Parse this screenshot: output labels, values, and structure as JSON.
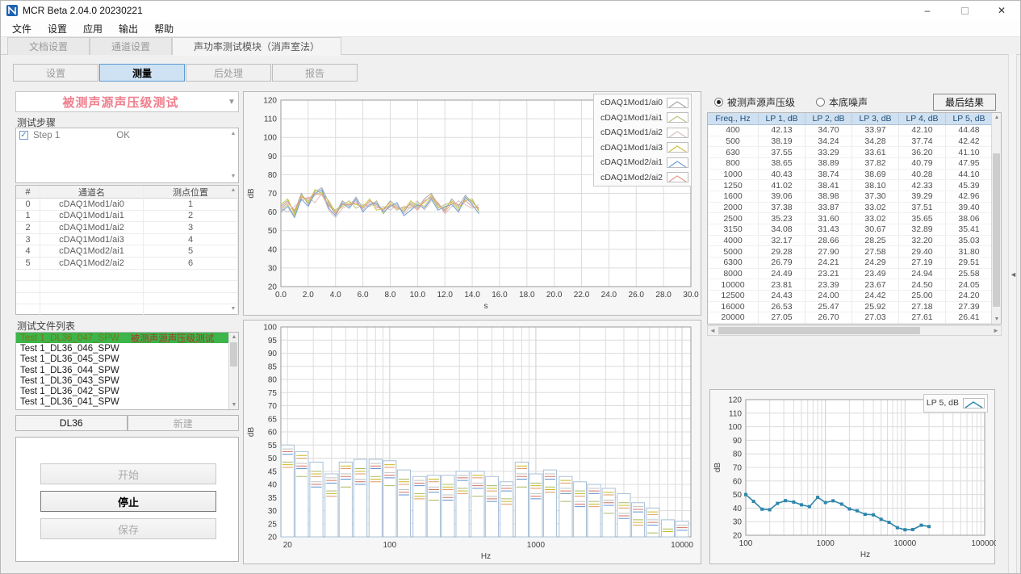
{
  "window": {
    "title": "MCR Beta 2.04.0 20230221",
    "minimize": "–",
    "close": "✕"
  },
  "menu": [
    "文件",
    "设置",
    "应用",
    "输出",
    "帮助"
  ],
  "tabs": [
    {
      "label": "文档设置",
      "active": false
    },
    {
      "label": "通道设置",
      "active": false
    },
    {
      "label": "声功率测试模块（消声室法）",
      "active": true
    }
  ],
  "subtabs": [
    {
      "label": "设置",
      "active": false
    },
    {
      "label": "测量",
      "active": true
    },
    {
      "label": "后处理",
      "active": false
    },
    {
      "label": "报告",
      "active": false
    }
  ],
  "left": {
    "test_selector": "被测声源声压级测试",
    "steps_label": "测试步骤",
    "steps": [
      {
        "checked": true,
        "name": "Step 1",
        "status": "OK"
      }
    ],
    "channel_table": {
      "headers": [
        "#",
        "通道名",
        "测点位置"
      ],
      "rows": [
        [
          "0",
          "cDAQ1Mod1/ai0",
          "1"
        ],
        [
          "1",
          "cDAQ1Mod1/ai1",
          "2"
        ],
        [
          "2",
          "cDAQ1Mod1/ai2",
          "3"
        ],
        [
          "3",
          "cDAQ1Mod1/ai3",
          "4"
        ],
        [
          "4",
          "cDAQ1Mod2/ai1",
          "5"
        ],
        [
          "5",
          "cDAQ1Mod2/ai2",
          "6"
        ]
      ],
      "empty_rows": 4
    },
    "file_list_label": "测试文件列表",
    "files": [
      {
        "name": "Test 1_DL36_047_SPW",
        "tag": "被测声源声压级测试",
        "selected": true
      },
      {
        "name": "Test 1_DL36_046_SPW",
        "tag": "",
        "selected": false
      },
      {
        "name": "Test 1_DL36_045_SPW",
        "tag": "",
        "selected": false
      },
      {
        "name": "Test 1_DL36_044_SPW",
        "tag": "",
        "selected": false
      },
      {
        "name": "Test 1_DL36_043_SPW",
        "tag": "",
        "selected": false
      },
      {
        "name": "Test 1_DL36_042_SPW",
        "tag": "",
        "selected": false
      },
      {
        "name": "Test 1_DL36_041_SPW",
        "tag": "",
        "selected": false
      }
    ],
    "buttons": {
      "dl36": "DL36",
      "new": "新建",
      "start": "开始",
      "stop": "停止",
      "save": "保存"
    }
  },
  "right": {
    "radio_source": "被测声源声压级",
    "radio_noise": "本底噪声",
    "final_button": "最后结果",
    "table": {
      "headers": [
        "Freq., Hz",
        "LP  1, dB",
        "LP  2, dB",
        "LP  3, dB",
        "LP  4, dB",
        "LP  5, dB"
      ],
      "rows": [
        [
          "400",
          "42.13",
          "34.70",
          "33.97",
          "42.10",
          "44.48"
        ],
        [
          "500",
          "38.19",
          "34.24",
          "34.28",
          "37.74",
          "42.42"
        ],
        [
          "630",
          "37.55",
          "33.29",
          "33.61",
          "36.20",
          "41.10"
        ],
        [
          "800",
          "38.65",
          "38.89",
          "37.82",
          "40.79",
          "47.95"
        ],
        [
          "1000",
          "40.43",
          "38.74",
          "38.69",
          "40.28",
          "44.10"
        ],
        [
          "1250",
          "41.02",
          "38.41",
          "38.10",
          "42.33",
          "45.39"
        ],
        [
          "1600",
          "39.06",
          "38.98",
          "37.30",
          "39.29",
          "42.96"
        ],
        [
          "2000",
          "37.38",
          "33.87",
          "33.02",
          "37.51",
          "39.40"
        ],
        [
          "2500",
          "35.23",
          "31.60",
          "33.02",
          "35.65",
          "38.06"
        ],
        [
          "3150",
          "34.08",
          "31.43",
          "30.67",
          "32.89",
          "35.41"
        ],
        [
          "4000",
          "32.17",
          "28.66",
          "28.25",
          "32.20",
          "35.03"
        ],
        [
          "5000",
          "29.28",
          "27.90",
          "27.58",
          "29.40",
          "31.80"
        ],
        [
          "6300",
          "26.79",
          "24.21",
          "24.29",
          "27.19",
          "29.51"
        ],
        [
          "8000",
          "24.49",
          "23.21",
          "23.49",
          "24.94",
          "25.58"
        ],
        [
          "10000",
          "23.81",
          "23.39",
          "23.67",
          "24.50",
          "24.05"
        ],
        [
          "12500",
          "24.43",
          "24.00",
          "24.42",
          "25.00",
          "24.20"
        ],
        [
          "16000",
          "26.53",
          "25.47",
          "25.92",
          "27.18",
          "27.39"
        ],
        [
          "20000",
          "27.05",
          "26.70",
          "27.03",
          "27.61",
          "26.41"
        ]
      ]
    }
  },
  "chart_data": [
    {
      "type": "line",
      "xlabel": "s",
      "ylabel": "dB",
      "ylim": [
        20,
        120
      ],
      "ytick": 10,
      "xlim": [
        0,
        30
      ],
      "xtick": 2,
      "x": [
        0,
        0.5,
        1,
        1.5,
        2,
        2.5,
        3,
        3.5,
        4,
        4.5,
        5,
        5.5,
        6,
        6.5,
        7,
        7.5,
        8,
        8.5,
        9,
        9.5,
        10,
        10.5,
        11,
        11.5,
        12,
        12.5,
        13,
        13.5,
        14,
        14.5
      ],
      "series": [
        {
          "name": "cDAQ1Mod1/ai0",
          "color": "#a6a6a6",
          "values": [
            63,
            66,
            60,
            70,
            64,
            71,
            73,
            65,
            59,
            66,
            63,
            68,
            62,
            66,
            64,
            61,
            66,
            63,
            60,
            65,
            62,
            67,
            70,
            64,
            61,
            67,
            63,
            69,
            65,
            62
          ]
        },
        {
          "name": "cDAQ1Mod1/ai1",
          "color": "#b9c27e",
          "values": [
            61,
            64,
            58,
            68,
            66,
            69,
            71,
            63,
            61,
            64,
            66,
            62,
            64,
            63,
            66,
            59,
            64,
            61,
            63,
            62,
            65,
            63,
            68,
            62,
            64,
            65,
            61,
            66,
            67,
            60
          ]
        },
        {
          "name": "cDAQ1Mod1/ai2",
          "color": "#d9c0c0",
          "values": [
            62,
            60,
            63,
            66,
            68,
            65,
            70,
            61,
            57,
            62,
            64,
            66,
            61,
            65,
            62,
            63,
            61,
            64,
            59,
            63,
            66,
            61,
            66,
            65,
            59,
            63,
            66,
            64,
            62,
            64
          ]
        },
        {
          "name": "cDAQ1Mod1/ai3",
          "color": "#cdc23e",
          "values": [
            64,
            67,
            59,
            69,
            65,
            72,
            70,
            66,
            60,
            63,
            65,
            64,
            63,
            67,
            61,
            62,
            65,
            62,
            61,
            66,
            63,
            65,
            69,
            63,
            62,
            66,
            62,
            67,
            66,
            61
          ]
        },
        {
          "name": "cDAQ1Mod2/ai1",
          "color": "#6f9fd8",
          "values": [
            60,
            63,
            57,
            67,
            63,
            70,
            72,
            62,
            58,
            65,
            62,
            67,
            60,
            64,
            65,
            60,
            63,
            65,
            58,
            61,
            64,
            62,
            67,
            61,
            63,
            64,
            60,
            68,
            64,
            59
          ]
        },
        {
          "name": "cDAQ1Mod2/ai2",
          "color": "#e29b8e",
          "values": [
            62,
            65,
            61,
            68,
            67,
            70,
            69,
            64,
            59,
            64,
            64,
            65,
            62,
            66,
            63,
            61,
            64,
            62,
            62,
            64,
            61,
            66,
            68,
            65,
            60,
            65,
            64,
            66,
            63,
            62
          ]
        }
      ],
      "legend_position": "top-right",
      "grid": true
    },
    {
      "type": "bar",
      "xlabel": "Hz",
      "ylabel": "dB",
      "ylim": [
        20,
        100
      ],
      "ytick": 5,
      "xlog_lim": [
        18,
        11500
      ],
      "xticks": [
        20,
        100,
        1000,
        10000
      ],
      "categories": [
        20,
        25,
        31.5,
        40,
        50,
        63,
        80,
        100,
        125,
        160,
        200,
        250,
        315,
        400,
        500,
        630,
        800,
        1000,
        1250,
        1600,
        2000,
        2500,
        3150,
        4000,
        5000,
        6300,
        8000,
        10000
      ],
      "values": [
        55,
        52.5,
        48.5,
        44,
        48.5,
        49.5,
        49.5,
        49,
        45.5,
        43,
        43.5,
        43.5,
        45,
        45,
        43,
        41,
        48.5,
        44,
        45.5,
        43,
        41,
        40,
        38.5,
        36.5,
        33,
        31,
        26.5,
        26
      ],
      "bar_outline": "#a9c0d6",
      "tick_colors": [
        "#c0c0c0",
        "#a8b860",
        "#d07060",
        "#c8b820",
        "#6090cc",
        "#e09860"
      ],
      "grid": true
    },
    {
      "type": "line",
      "name": "LP  5, dB",
      "color": "#2e86ab",
      "xlabel": "Hz",
      "ylabel": "dB",
      "ylim": [
        20,
        120
      ],
      "ytick": 10,
      "xlog_lim": [
        100,
        100000
      ],
      "xticks": [
        100,
        1000,
        10000,
        100000
      ],
      "x": [
        100,
        125,
        160,
        200,
        250,
        315,
        400,
        500,
        630,
        800,
        1000,
        1250,
        1600,
        2000,
        2500,
        3150,
        4000,
        5000,
        6300,
        8000,
        10000,
        12500,
        16000,
        20000
      ],
      "values": [
        50,
        45,
        39.2,
        38.8,
        43.5,
        45.5,
        44.48,
        42.42,
        41.1,
        47.95,
        44.1,
        45.39,
        42.96,
        39.4,
        38.06,
        35.41,
        35.03,
        31.8,
        29.51,
        25.58,
        24.05,
        24.2,
        27.39,
        26.41
      ],
      "legend_position": "top-right",
      "grid": true
    }
  ]
}
